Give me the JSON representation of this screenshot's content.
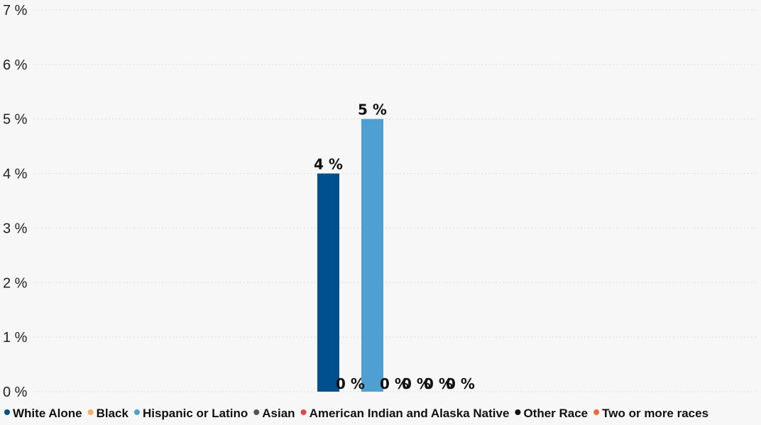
{
  "chart_data": {
    "type": "bar",
    "y_unit_suffix": " %",
    "ylim": [
      0,
      7
    ],
    "yticks": [
      0,
      1,
      2,
      3,
      4,
      5,
      6,
      7
    ],
    "grid": true,
    "legend_position": "bottom-left",
    "series": [
      {
        "name": "White Alone",
        "value": 4,
        "label": "4 %",
        "color": "#00508f"
      },
      {
        "name": "Black",
        "value": 0,
        "label": "0 %",
        "color": "#fcae5b"
      },
      {
        "name": "Hispanic or Latino",
        "value": 5,
        "label": "5 %",
        "color": "#4f9fd3"
      },
      {
        "name": "Asian",
        "value": 0,
        "label": "0 %",
        "color": "#555555"
      },
      {
        "name": "American Indian and Alaska Native",
        "value": 0,
        "label": "0 %",
        "color": "#e84545"
      },
      {
        "name": "Other Race",
        "value": 0,
        "label": "0 %",
        "color": "#111111"
      },
      {
        "name": "Two or more races",
        "value": 0,
        "label": "0 %",
        "color": "#f06a3b"
      }
    ]
  }
}
